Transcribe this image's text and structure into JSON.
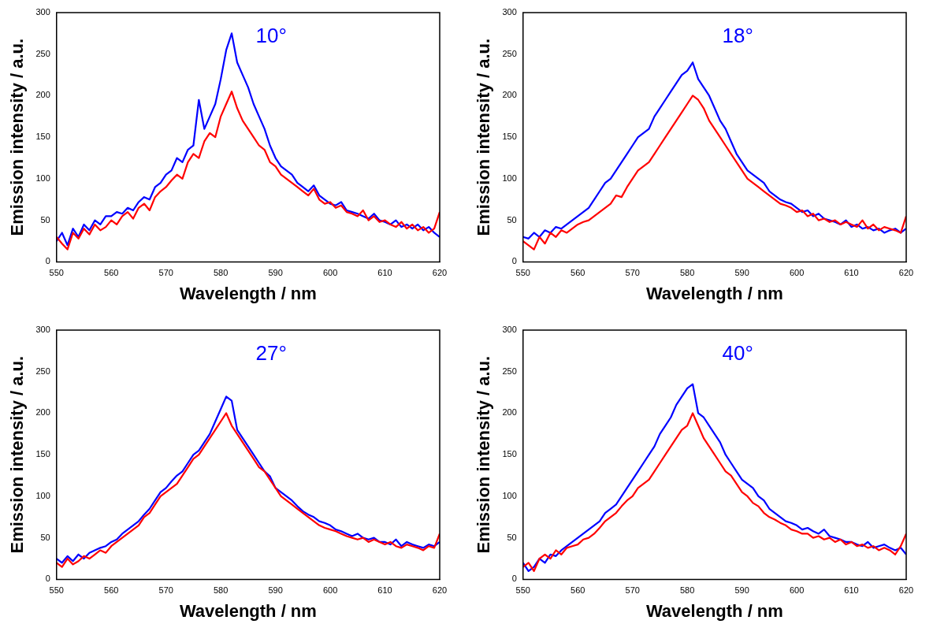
{
  "chart_data": [
    {
      "type": "line",
      "xlabel": "Wavelength / nm",
      "ylabel": "Emission intensity / a.u.",
      "marker": "none",
      "annotations": [
        "10°"
      ],
      "xlim": [
        550,
        620
      ],
      "xticks": [
        550,
        560,
        570,
        580,
        590,
        600,
        610,
        620
      ],
      "ylim": [
        0,
        300
      ],
      "yticks": [
        0,
        50,
        100,
        150,
        200,
        250,
        300
      ],
      "x": [
        550,
        551,
        552,
        553,
        554,
        555,
        556,
        557,
        558,
        559,
        560,
        561,
        562,
        563,
        564,
        565,
        566,
        567,
        568,
        569,
        570,
        571,
        572,
        573,
        574,
        575,
        576,
        577,
        578,
        579,
        580,
        581,
        582,
        583,
        584,
        585,
        586,
        587,
        588,
        589,
        590,
        591,
        592,
        593,
        594,
        595,
        596,
        597,
        598,
        599,
        600,
        601,
        602,
        603,
        604,
        605,
        606,
        607,
        608,
        609,
        610,
        611,
        612,
        613,
        614,
        615,
        616,
        617,
        618,
        619,
        620
      ],
      "series": [
        {
          "color": "#ff0000",
          "values": [
            30,
            22,
            15,
            35,
            28,
            40,
            33,
            45,
            38,
            42,
            50,
            45,
            55,
            60,
            52,
            65,
            70,
            62,
            78,
            85,
            90,
            98,
            105,
            100,
            120,
            130,
            125,
            145,
            155,
            150,
            175,
            190,
            205,
            185,
            170,
            160,
            150,
            140,
            135,
            120,
            115,
            105,
            100,
            95,
            90,
            85,
            80,
            88,
            75,
            70,
            72,
            65,
            68,
            60,
            58,
            55,
            62,
            50,
            55,
            48,
            50,
            45,
            42,
            48,
            40,
            45,
            38,
            42,
            35,
            40,
            60
          ]
        },
        {
          "color": "#0000ff",
          "values": [
            25,
            35,
            20,
            40,
            30,
            45,
            38,
            50,
            45,
            55,
            55,
            60,
            58,
            65,
            62,
            72,
            78,
            75,
            90,
            95,
            105,
            110,
            125,
            120,
            135,
            140,
            195,
            160,
            175,
            190,
            220,
            255,
            275,
            240,
            225,
            210,
            190,
            175,
            160,
            140,
            125,
            115,
            110,
            105,
            95,
            90,
            85,
            92,
            80,
            75,
            70,
            68,
            72,
            62,
            60,
            58,
            55,
            52,
            58,
            50,
            48,
            45,
            50,
            42,
            45,
            40,
            45,
            38,
            42,
            35,
            30
          ]
        }
      ]
    },
    {
      "type": "line",
      "xlabel": "Wavelength / nm",
      "ylabel": "Emission intensity / a.u.",
      "marker": "none",
      "annotations": [
        "18°"
      ],
      "xlim": [
        550,
        620
      ],
      "xticks": [
        550,
        560,
        570,
        580,
        590,
        600,
        610,
        620
      ],
      "ylim": [
        0,
        300
      ],
      "yticks": [
        0,
        50,
        100,
        150,
        200,
        250,
        300
      ],
      "x": [
        550,
        551,
        552,
        553,
        554,
        555,
        556,
        557,
        558,
        559,
        560,
        561,
        562,
        563,
        564,
        565,
        566,
        567,
        568,
        569,
        570,
        571,
        572,
        573,
        574,
        575,
        576,
        577,
        578,
        579,
        580,
        581,
        582,
        583,
        584,
        585,
        586,
        587,
        588,
        589,
        590,
        591,
        592,
        593,
        594,
        595,
        596,
        597,
        598,
        599,
        600,
        601,
        602,
        603,
        604,
        605,
        606,
        607,
        608,
        609,
        610,
        611,
        612,
        613,
        614,
        615,
        616,
        617,
        618,
        619,
        620
      ],
      "series": [
        {
          "color": "#ff0000",
          "values": [
            25,
            20,
            15,
            30,
            22,
            35,
            30,
            38,
            35,
            40,
            45,
            48,
            50,
            55,
            60,
            65,
            70,
            80,
            78,
            90,
            100,
            110,
            115,
            120,
            130,
            140,
            150,
            160,
            170,
            180,
            190,
            200,
            195,
            185,
            170,
            160,
            150,
            140,
            130,
            120,
            110,
            100,
            95,
            90,
            85,
            80,
            75,
            70,
            68,
            65,
            60,
            62,
            55,
            58,
            50,
            52,
            48,
            50,
            45,
            48,
            45,
            42,
            50,
            40,
            45,
            38,
            42,
            40,
            38,
            35,
            55
          ]
        },
        {
          "color": "#0000ff",
          "values": [
            30,
            28,
            35,
            30,
            38,
            35,
            42,
            40,
            45,
            50,
            55,
            60,
            65,
            75,
            85,
            95,
            100,
            110,
            120,
            130,
            140,
            150,
            155,
            160,
            175,
            185,
            195,
            205,
            215,
            225,
            230,
            240,
            220,
            210,
            200,
            185,
            170,
            160,
            145,
            130,
            120,
            110,
            105,
            100,
            95,
            85,
            80,
            75,
            72,
            70,
            65,
            60,
            62,
            55,
            58,
            52,
            50,
            48,
            45,
            50,
            42,
            45,
            40,
            42,
            38,
            40,
            35,
            38,
            40,
            35,
            40
          ]
        }
      ]
    },
    {
      "type": "line",
      "xlabel": "Wavelength / nm",
      "ylabel": "Emission intensity / a.u.",
      "marker": "none",
      "annotations": [
        "27°"
      ],
      "xlim": [
        550,
        620
      ],
      "xticks": [
        550,
        560,
        570,
        580,
        590,
        600,
        610,
        620
      ],
      "ylim": [
        0,
        300
      ],
      "yticks": [
        0,
        50,
        100,
        150,
        200,
        250,
        300
      ],
      "x": [
        550,
        551,
        552,
        553,
        554,
        555,
        556,
        557,
        558,
        559,
        560,
        561,
        562,
        563,
        564,
        565,
        566,
        567,
        568,
        569,
        570,
        571,
        572,
        573,
        574,
        575,
        576,
        577,
        578,
        579,
        580,
        581,
        582,
        583,
        584,
        585,
        586,
        587,
        588,
        589,
        590,
        591,
        592,
        593,
        594,
        595,
        596,
        597,
        598,
        599,
        600,
        601,
        602,
        603,
        604,
        605,
        606,
        607,
        608,
        609,
        610,
        611,
        612,
        613,
        614,
        615,
        616,
        617,
        618,
        619,
        620
      ],
      "series": [
        {
          "color": "#ff0000",
          "values": [
            20,
            15,
            25,
            18,
            22,
            28,
            25,
            30,
            35,
            32,
            40,
            45,
            50,
            55,
            60,
            65,
            75,
            80,
            90,
            100,
            105,
            110,
            115,
            125,
            135,
            145,
            150,
            160,
            170,
            180,
            190,
            200,
            185,
            175,
            165,
            155,
            145,
            135,
            130,
            120,
            110,
            100,
            95,
            90,
            85,
            80,
            75,
            70,
            65,
            62,
            60,
            58,
            55,
            52,
            50,
            48,
            50,
            45,
            48,
            45,
            42,
            45,
            40,
            38,
            42,
            40,
            38,
            35,
            40,
            38,
            55
          ]
        },
        {
          "color": "#0000ff",
          "values": [
            25,
            20,
            28,
            22,
            30,
            25,
            32,
            35,
            38,
            40,
            45,
            48,
            55,
            60,
            65,
            70,
            78,
            85,
            95,
            105,
            110,
            118,
            125,
            130,
            140,
            150,
            155,
            165,
            175,
            190,
            205,
            220,
            215,
            180,
            170,
            160,
            150,
            140,
            130,
            124,
            110,
            105,
            100,
            95,
            88,
            82,
            78,
            75,
            70,
            68,
            65,
            60,
            58,
            55,
            52,
            55,
            50,
            48,
            50,
            45,
            45,
            42,
            48,
            40,
            45,
            42,
            40,
            38,
            42,
            40,
            45
          ]
        }
      ]
    },
    {
      "type": "line",
      "xlabel": "Wavelength / nm",
      "ylabel": "Emission intensity / a.u.",
      "marker": "none",
      "annotations": [
        "40°"
      ],
      "xlim": [
        550,
        620
      ],
      "xticks": [
        550,
        560,
        570,
        580,
        590,
        600,
        610,
        620
      ],
      "ylim": [
        0,
        300
      ],
      "yticks": [
        0,
        50,
        100,
        150,
        200,
        250,
        300
      ],
      "x": [
        550,
        551,
        552,
        553,
        554,
        555,
        556,
        557,
        558,
        559,
        560,
        561,
        562,
        563,
        564,
        565,
        566,
        567,
        568,
        569,
        570,
        571,
        572,
        573,
        574,
        575,
        576,
        577,
        578,
        579,
        580,
        581,
        582,
        583,
        584,
        585,
        586,
        587,
        588,
        589,
        590,
        591,
        592,
        593,
        594,
        595,
        596,
        597,
        598,
        599,
        600,
        601,
        602,
        603,
        604,
        605,
        606,
        607,
        608,
        609,
        610,
        611,
        612,
        613,
        614,
        615,
        616,
        617,
        618,
        619,
        620
      ],
      "series": [
        {
          "color": "#ff0000",
          "values": [
            15,
            20,
            10,
            25,
            30,
            25,
            35,
            30,
            38,
            40,
            42,
            48,
            50,
            55,
            62,
            70,
            75,
            80,
            88,
            95,
            100,
            110,
            115,
            120,
            130,
            140,
            150,
            160,
            170,
            180,
            185,
            200,
            185,
            170,
            160,
            150,
            140,
            130,
            125,
            115,
            105,
            100,
            92,
            88,
            80,
            75,
            72,
            68,
            65,
            60,
            58,
            55,
            55,
            50,
            52,
            48,
            50,
            45,
            48,
            42,
            45,
            40,
            42,
            38,
            40,
            35,
            38,
            35,
            30,
            40,
            55
          ]
        },
        {
          "color": "#0000ff",
          "values": [
            20,
            10,
            15,
            25,
            20,
            30,
            28,
            35,
            40,
            45,
            50,
            55,
            60,
            65,
            70,
            80,
            85,
            90,
            100,
            110,
            120,
            130,
            140,
            150,
            160,
            175,
            185,
            195,
            210,
            220,
            230,
            235,
            200,
            195,
            185,
            175,
            165,
            150,
            140,
            130,
            120,
            115,
            110,
            100,
            95,
            85,
            80,
            75,
            70,
            68,
            65,
            60,
            62,
            58,
            55,
            60,
            52,
            50,
            48,
            45,
            45,
            42,
            40,
            45,
            38,
            40,
            42,
            38,
            35,
            38,
            30
          ]
        }
      ]
    }
  ]
}
